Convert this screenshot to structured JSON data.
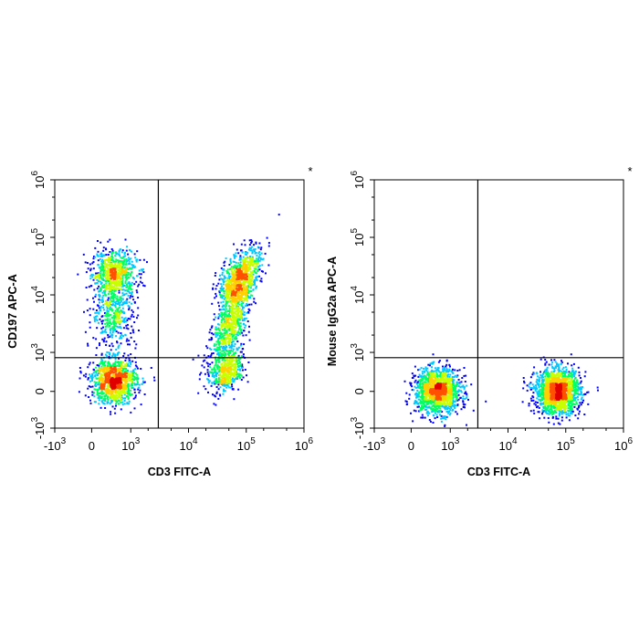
{
  "chart_data": [
    {
      "type": "scatter",
      "title": "",
      "corner_mark": "*",
      "xlabel": "CD3 FITC-A",
      "ylabel": "CD197 APC-A",
      "x_scale": "biexponential",
      "y_scale": "biexponential",
      "xlim": [
        -1000,
        1000000
      ],
      "ylim": [
        -1000,
        1000000
      ],
      "x_ticks": [
        {
          "base": "-10",
          "exp": "3",
          "value": -1000
        },
        {
          "base": "0",
          "exp": "",
          "value": 0
        },
        {
          "base": "10",
          "exp": "3",
          "value": 1000
        },
        {
          "base": "10",
          "exp": "4",
          "value": 10000
        },
        {
          "base": "10",
          "exp": "5",
          "value": 100000
        },
        {
          "base": "10",
          "exp": "6",
          "value": 1000000
        }
      ],
      "y_ticks": [
        {
          "base": "-10",
          "exp": "3",
          "value": -1000
        },
        {
          "base": "0",
          "exp": "",
          "value": 0
        },
        {
          "base": "10",
          "exp": "3",
          "value": 1000
        },
        {
          "base": "10",
          "exp": "4",
          "value": 10000
        },
        {
          "base": "10",
          "exp": "5",
          "value": 100000
        },
        {
          "base": "10",
          "exp": "6",
          "value": 1000000
        }
      ],
      "gates": {
        "x": 3000,
        "y": 700
      },
      "populations": [
        {
          "x_center": 300,
          "y_center": 25000,
          "n": 650
        },
        {
          "x_center": 300,
          "y_center": 5000,
          "n": 450
        },
        {
          "x_center": 300,
          "y_center": 120,
          "n": 1100
        },
        {
          "x_center": 75000,
          "y_center": 20000,
          "n": 900
        },
        {
          "x_center": 50000,
          "y_center": 3000,
          "n": 650
        },
        {
          "x_center": 45000,
          "y_center": 300,
          "n": 450
        }
      ]
    },
    {
      "type": "scatter",
      "title": "",
      "corner_mark": "*",
      "xlabel": "CD3 FITC-A",
      "ylabel": "Mouse IgG2a APC-A",
      "x_scale": "biexponential",
      "y_scale": "biexponential",
      "xlim": [
        -1000,
        1000000
      ],
      "ylim": [
        -1000,
        1000000
      ],
      "x_ticks": [
        {
          "base": "-10",
          "exp": "3",
          "value": -1000
        },
        {
          "base": "0",
          "exp": "",
          "value": 0
        },
        {
          "base": "10",
          "exp": "3",
          "value": 1000
        },
        {
          "base": "10",
          "exp": "4",
          "value": 10000
        },
        {
          "base": "10",
          "exp": "5",
          "value": 100000
        },
        {
          "base": "10",
          "exp": "6",
          "value": 1000000
        }
      ],
      "y_ticks": [
        {
          "base": "-10",
          "exp": "3",
          "value": -1000
        },
        {
          "base": "0",
          "exp": "",
          "value": 0
        },
        {
          "base": "10",
          "exp": "3",
          "value": 1000
        },
        {
          "base": "10",
          "exp": "4",
          "value": 10000
        },
        {
          "base": "10",
          "exp": "5",
          "value": 100000
        },
        {
          "base": "10",
          "exp": "6",
          "value": 1000000
        }
      ],
      "gates": {
        "x": 3000,
        "y": 700
      },
      "populations": [
        {
          "x_center": 400,
          "y_center": 10,
          "n": 1400
        },
        {
          "x_center": 70000,
          "y_center": 10,
          "n": 1600
        }
      ]
    }
  ],
  "colors": {
    "density_scale": [
      "#0000ff",
      "#00c8ff",
      "#00ff60",
      "#c8ff00",
      "#ffd000",
      "#ff5000",
      "#e00000"
    ],
    "axis": "#000000",
    "gate_line": "#000000"
  }
}
